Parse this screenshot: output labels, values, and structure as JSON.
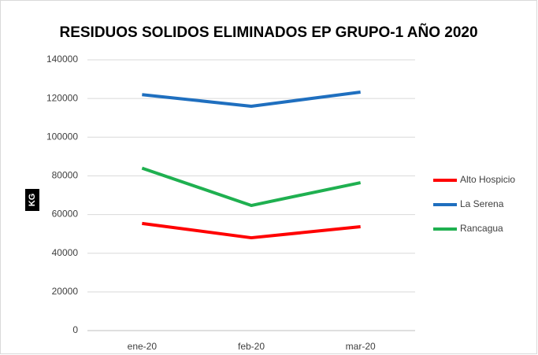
{
  "chart_data": {
    "type": "line",
    "title": "RESIDUOS SOLIDOS ELIMINADOS EP GRUPO-1 AÑO 2020",
    "y_label": "KG",
    "categories": [
      "ene-20",
      "feb-20",
      "mar-20"
    ],
    "series": [
      {
        "name": "Alto Hospicio",
        "color": "#ff0000",
        "values": [
          55400,
          48000,
          53700
        ]
      },
      {
        "name": "La Serena",
        "color": "#1f6fbf",
        "values": [
          122000,
          116000,
          123300
        ]
      },
      {
        "name": "Rancagua",
        "color": "#1fb050",
        "values": [
          84000,
          64700,
          76500
        ]
      }
    ],
    "ylim": [
      0,
      140000
    ],
    "yticks": [
      0,
      20000,
      40000,
      60000,
      80000,
      100000,
      120000,
      140000
    ],
    "grid": true,
    "legend": "right"
  }
}
